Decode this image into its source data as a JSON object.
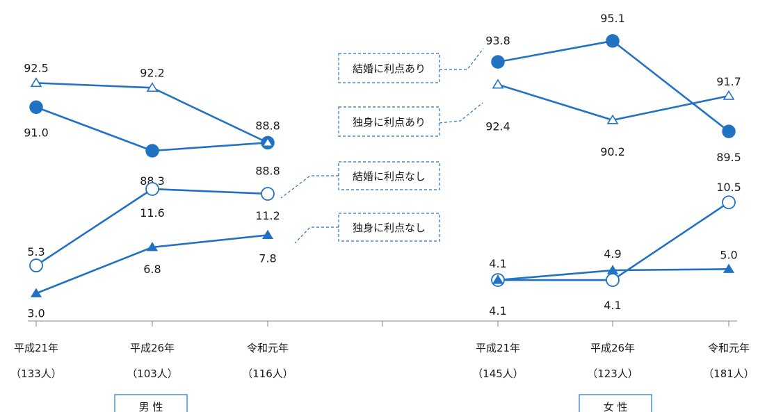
{
  "chart_data": {
    "type": "line",
    "groups": [
      {
        "label": "男 性",
        "categories": [
          "平成21年",
          "平成26年",
          "令和元年"
        ],
        "counts": [
          "（133人）",
          "（103人）",
          "（116人）"
        ],
        "series": [
          {
            "name": "結婚に利点あり",
            "marker": "filled-circle",
            "values": [
              91.0,
              88.3,
              88.8
            ]
          },
          {
            "name": "独身に利点あり",
            "marker": "open-triangle",
            "values": [
              92.5,
              92.2,
              88.8
            ]
          },
          {
            "name": "結婚に利点なし",
            "marker": "open-circle",
            "values": [
              5.3,
              11.6,
              11.2
            ]
          },
          {
            "name": "独身に利点なし",
            "marker": "filled-triangle",
            "values": [
              3.0,
              6.8,
              7.8
            ]
          }
        ]
      },
      {
        "label": "女 性",
        "categories": [
          "平成21年",
          "平成26年",
          "令和元年"
        ],
        "counts": [
          "（145人）",
          "（123人）",
          "（181人）"
        ],
        "series": [
          {
            "name": "結婚に利点あり",
            "marker": "filled-circle",
            "values": [
              93.8,
              95.1,
              89.5
            ]
          },
          {
            "name": "独身に利点あり",
            "marker": "open-triangle",
            "values": [
              92.4,
              90.2,
              91.7
            ]
          },
          {
            "name": "結婚に利点なし",
            "marker": "open-circle",
            "values": [
              4.1,
              4.1,
              10.5
            ]
          },
          {
            "name": "独身に利点なし",
            "marker": "filled-triangle",
            "values": [
              4.1,
              4.9,
              5.0
            ]
          }
        ]
      }
    ],
    "legend_labels": [
      "結婚に利点あり",
      "独身に利点あり",
      "結婚に利点なし",
      "独身に利点なし"
    ],
    "colors": {
      "line": "#2272c3",
      "text": "#1a1a1a",
      "axis": "#888888"
    }
  }
}
